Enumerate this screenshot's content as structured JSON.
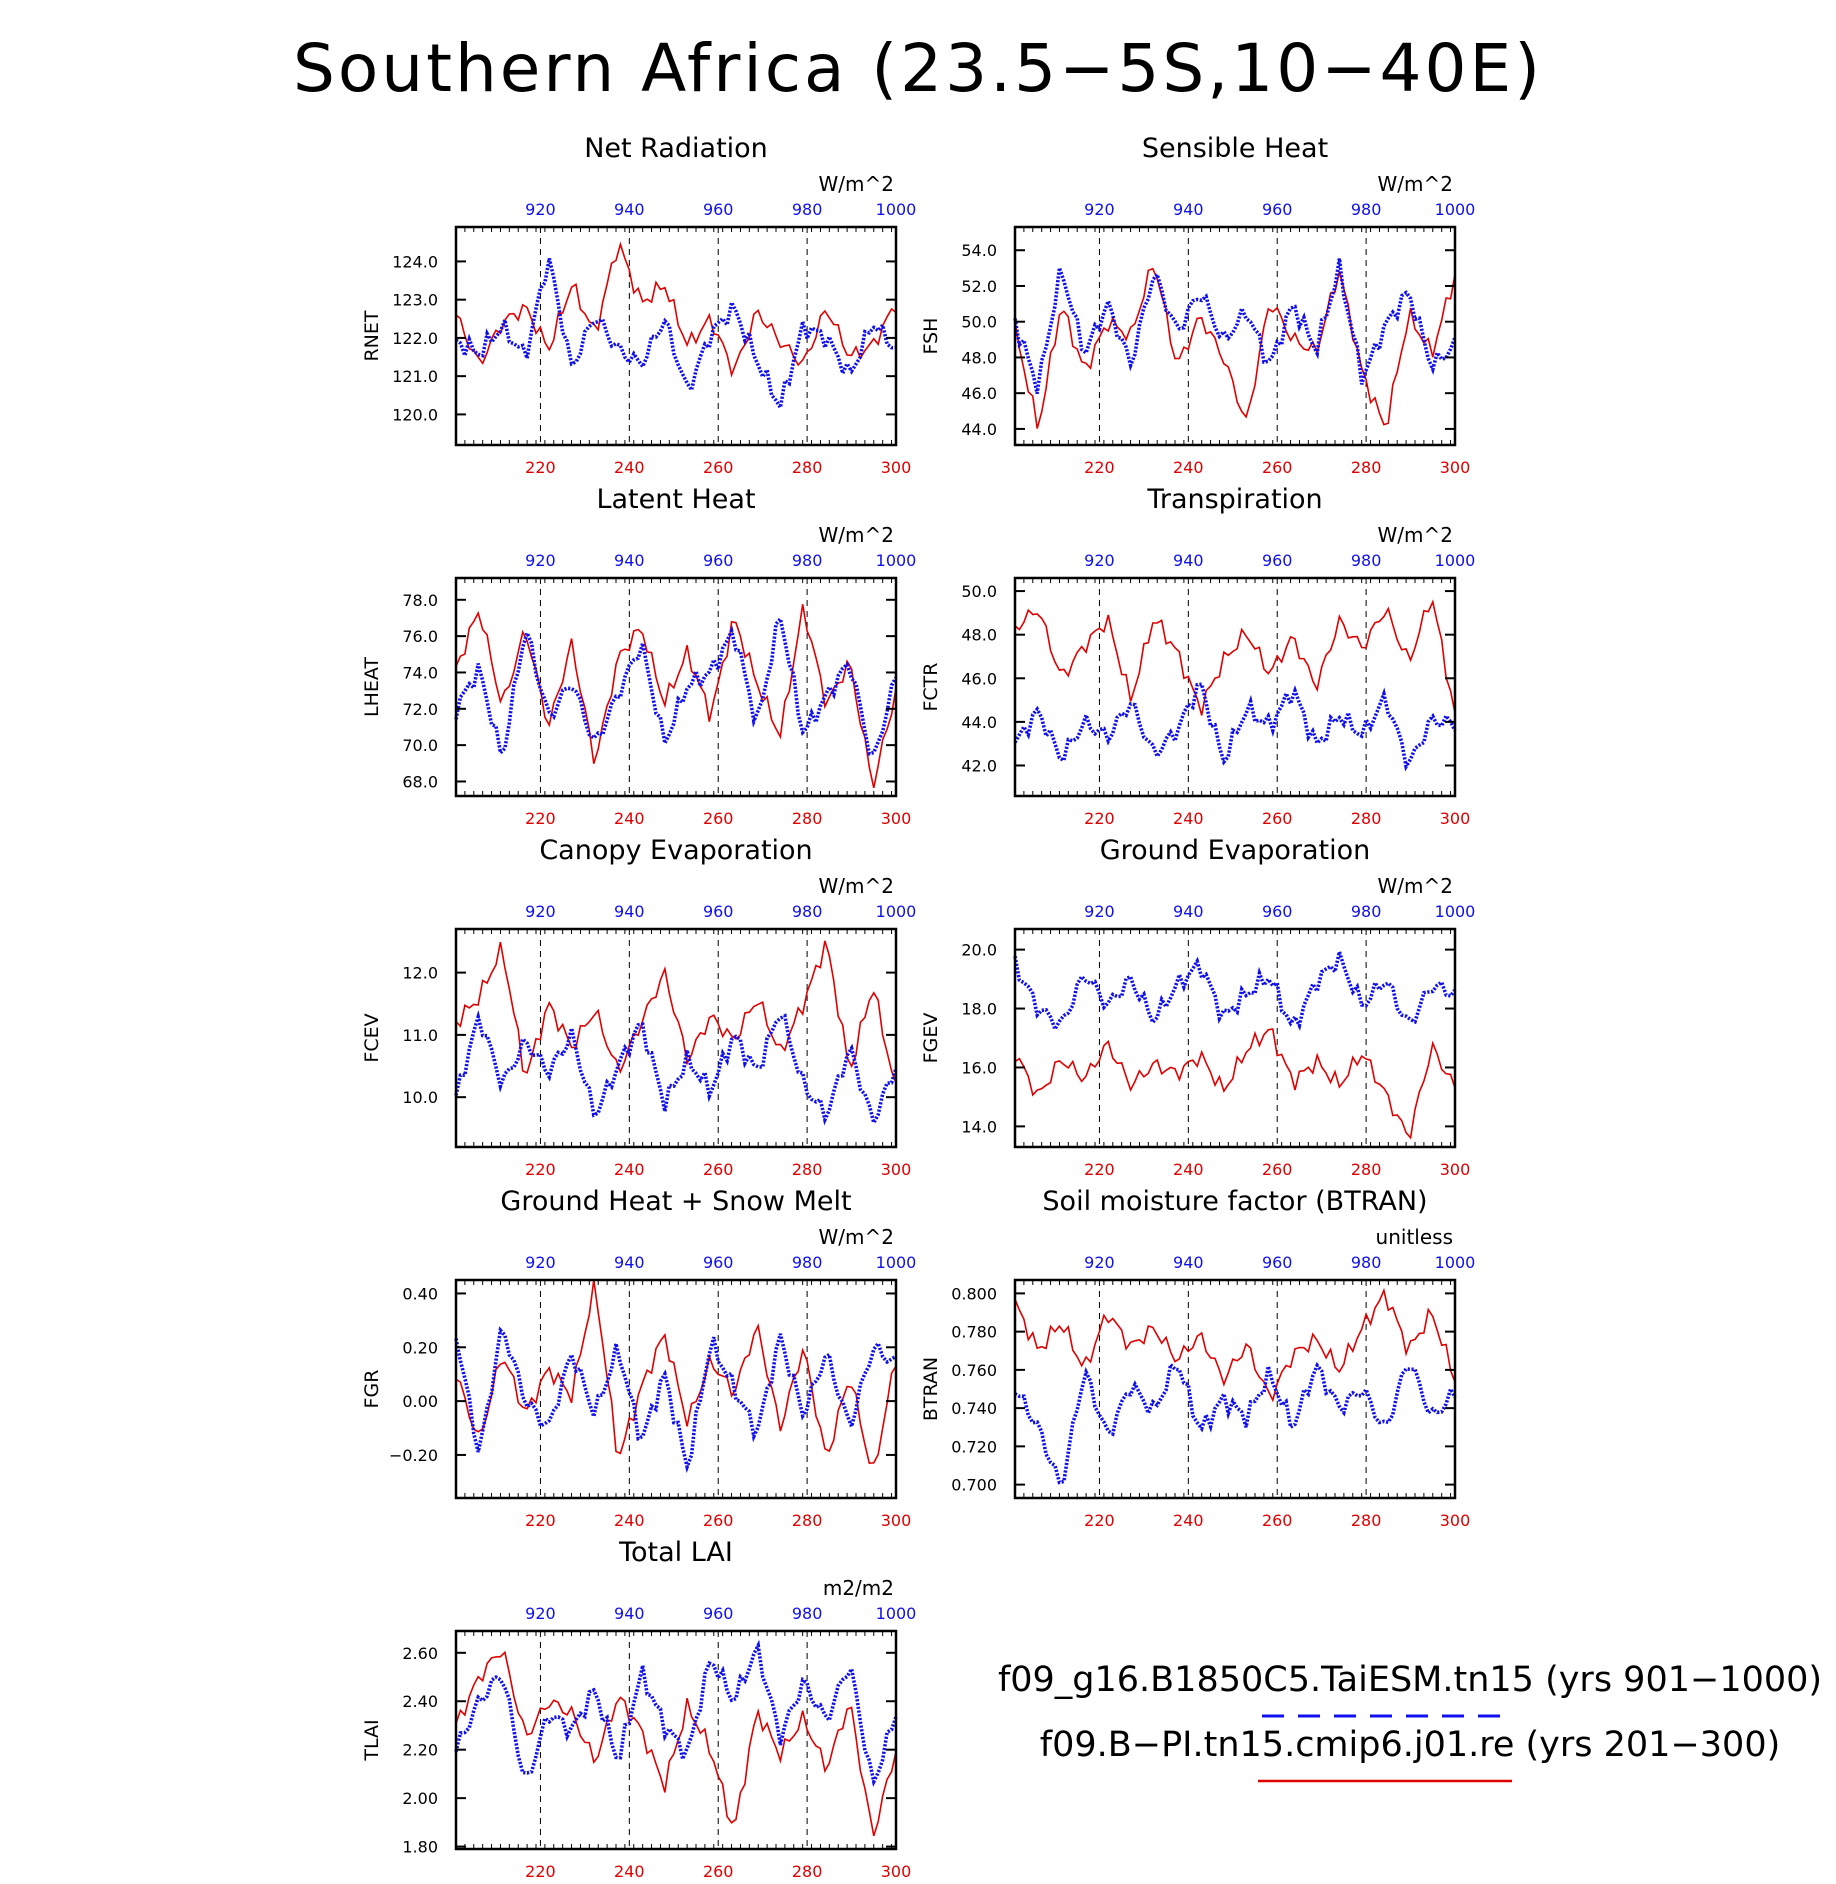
{
  "title": "Southern Africa (23.5−5S,10−40E)",
  "legend": [
    {
      "label": "f09_g16.B1850C5.TaiESM.tn15 (yrs 901−1000)",
      "color": "#1a1aff",
      "style": "dashed"
    },
    {
      "label": "f09.B−PI.tn15.cmip6.j01.re (yrs 201−300)",
      "color": "#e00000",
      "style": "solid"
    }
  ],
  "colors": {
    "red_series": "#e00000",
    "blue_series": "#1010ee"
  },
  "chart_data": [
    {
      "type": "line",
      "title": "Net Radiation",
      "ylabel": "RNET",
      "units": "W/m^2",
      "yticks": [
        "120.0",
        "121.0",
        "122.0",
        "123.0",
        "124.0"
      ],
      "ylim": [
        119.2,
        124.9
      ],
      "x_bottom_ticks": [
        "220",
        "240",
        "260",
        "280",
        "300"
      ],
      "x_bottom_range": [
        201,
        300
      ],
      "x_top_ticks": [
        "920",
        "940",
        "960",
        "980",
        "1000"
      ],
      "x_top_range": [
        901,
        1000
      ],
      "series": [
        {
          "color": "red",
          "years": "201-300",
          "values": [
            122.6,
            121.3,
            122.4,
            122.8,
            121.7,
            123.4,
            122.1,
            124.5,
            122.9,
            123.4,
            121.8,
            122.5,
            121.1,
            122.7,
            121.9,
            121.3,
            122.8,
            121.5,
            121.8,
            122.9
          ]
        },
        {
          "color": "blue",
          "years": "901-1000",
          "values": [
            121.9,
            121.6,
            122.3,
            121.5,
            124.1,
            121.2,
            122.6,
            121.7,
            121.3,
            122.5,
            120.6,
            122.1,
            122.8,
            121.4,
            120.2,
            122.3,
            122.0,
            121.0,
            122.4,
            121.7
          ]
        }
      ]
    },
    {
      "type": "line",
      "title": "Sensible Heat",
      "ylabel": "FSH",
      "units": "W/m^2",
      "yticks": [
        "44.0",
        "46.0",
        "48.0",
        "50.0",
        "52.0",
        "54.0"
      ],
      "ylim": [
        43.1,
        55.3
      ],
      "x_bottom_ticks": [
        "220",
        "240",
        "260",
        "280",
        "300"
      ],
      "x_bottom_range": [
        201,
        300
      ],
      "x_top_ticks": [
        "920",
        "940",
        "960",
        "980",
        "1000"
      ],
      "x_top_range": [
        901,
        1000
      ],
      "series": [
        {
          "color": "red",
          "years": "201-300",
          "values": [
            49.6,
            44.0,
            51.0,
            47.2,
            50.0,
            49.2,
            53.4,
            47.5,
            50.3,
            48.0,
            44.3,
            51.2,
            49.0,
            48.3,
            52.9,
            47.1,
            44.0,
            50.4,
            48.2,
            52.6
          ]
        },
        {
          "color": "blue",
          "years": "901-1000",
          "values": [
            50.0,
            46.3,
            53.0,
            48.2,
            51.0,
            47.6,
            52.8,
            49.4,
            51.7,
            48.9,
            50.6,
            47.5,
            51.0,
            48.4,
            53.0,
            46.8,
            49.8,
            51.7,
            47.5,
            48.7
          ]
        }
      ]
    },
    {
      "type": "line",
      "title": "Latent Heat",
      "ylabel": "LHEAT",
      "units": "W/m^2",
      "yticks": [
        "68.0",
        "70.0",
        "72.0",
        "74.0",
        "76.0",
        "78.0"
      ],
      "ylim": [
        67.2,
        79.2
      ],
      "x_bottom_ticks": [
        "220",
        "240",
        "260",
        "280",
        "300"
      ],
      "x_bottom_range": [
        201,
        300
      ],
      "x_top_ticks": [
        "920",
        "940",
        "960",
        "980",
        "1000"
      ],
      "x_top_range": [
        901,
        1000
      ],
      "series": [
        {
          "color": "red",
          "years": "201-300",
          "values": [
            74.2,
            77.5,
            72.1,
            76.4,
            71.0,
            75.6,
            69.0,
            74.8,
            76.5,
            72.3,
            75.1,
            71.6,
            77.0,
            73.4,
            70.5,
            77.6,
            72.2,
            74.6,
            67.7,
            73.0
          ]
        },
        {
          "color": "blue",
          "years": "901-1000",
          "values": [
            72.0,
            74.2,
            69.2,
            76.5,
            71.5,
            73.5,
            70.0,
            72.8,
            75.6,
            70.1,
            73.3,
            74.0,
            76.3,
            71.1,
            77.2,
            70.6,
            72.7,
            74.6,
            69.0,
            73.8
          ]
        }
      ]
    },
    {
      "type": "line",
      "title": "Transpiration",
      "ylabel": "FCTR",
      "units": "W/m^2",
      "yticks": [
        "42.0",
        "44.0",
        "46.0",
        "48.0",
        "50.0"
      ],
      "ylim": [
        40.6,
        50.6
      ],
      "x_bottom_ticks": [
        "220",
        "240",
        "260",
        "280",
        "300"
      ],
      "x_bottom_range": [
        201,
        300
      ],
      "x_top_ticks": [
        "920",
        "940",
        "960",
        "980",
        "1000"
      ],
      "x_top_range": [
        901,
        1000
      ],
      "series": [
        {
          "color": "red",
          "years": "201-300",
          "values": [
            48.3,
            49.2,
            46.0,
            47.5,
            48.7,
            45.0,
            48.8,
            47.2,
            44.6,
            46.8,
            48.1,
            46.2,
            47.9,
            45.6,
            48.6,
            47.4,
            49.2,
            46.7,
            49.8,
            44.3
          ]
        },
        {
          "color": "blue",
          "years": "901-1000",
          "values": [
            43.0,
            44.5,
            42.3,
            44.0,
            43.3,
            44.9,
            42.5,
            43.6,
            45.8,
            42.2,
            44.6,
            43.8,
            45.5,
            42.9,
            44.3,
            43.4,
            45.1,
            42.0,
            44.1,
            43.9
          ]
        }
      ]
    },
    {
      "type": "line",
      "title": "Canopy Evaporation",
      "ylabel": "FCEV",
      "units": "W/m^2",
      "yticks": [
        "10.0",
        "11.0",
        "12.0"
      ],
      "ylim": [
        9.2,
        12.7
      ],
      "x_bottom_ticks": [
        "220",
        "240",
        "260",
        "280",
        "300"
      ],
      "x_bottom_range": [
        201,
        300
      ],
      "x_top_ticks": [
        "920",
        "940",
        "960",
        "980",
        "1000"
      ],
      "x_top_range": [
        901,
        1000
      ],
      "series": [
        {
          "color": "red",
          "years": "201-300",
          "values": [
            11.2,
            11.6,
            12.4,
            10.3,
            11.5,
            10.8,
            11.4,
            10.4,
            11.2,
            12.0,
            10.6,
            11.3,
            10.9,
            11.6,
            10.7,
            11.5,
            12.5,
            10.4,
            11.8,
            10.1
          ]
        },
        {
          "color": "blue",
          "years": "901-1000",
          "values": [
            10.0,
            11.3,
            10.2,
            10.9,
            10.4,
            11.0,
            9.7,
            10.5,
            11.2,
            9.9,
            10.6,
            10.1,
            11.0,
            10.4,
            11.4,
            10.2,
            9.7,
            10.8,
            9.6,
            10.5
          ]
        }
      ]
    },
    {
      "type": "line",
      "title": "Ground Evaporation",
      "ylabel": "FGEV",
      "units": "W/m^2",
      "yticks": [
        "14.0",
        "16.0",
        "18.0",
        "20.0"
      ],
      "ylim": [
        13.3,
        20.7
      ],
      "x_bottom_ticks": [
        "220",
        "240",
        "260",
        "280",
        "300"
      ],
      "x_bottom_range": [
        201,
        300
      ],
      "x_top_ticks": [
        "920",
        "940",
        "960",
        "980",
        "1000"
      ],
      "x_top_range": [
        901,
        1000
      ],
      "series": [
        {
          "color": "red",
          "years": "201-300",
          "values": [
            16.5,
            15.0,
            16.3,
            15.6,
            16.8,
            15.4,
            16.1,
            15.8,
            16.4,
            15.2,
            16.6,
            17.3,
            15.5,
            16.2,
            15.4,
            16.5,
            15.1,
            13.6,
            16.7,
            15.3
          ]
        },
        {
          "color": "blue",
          "years": "901-1000",
          "values": [
            19.5,
            18.0,
            17.4,
            19.2,
            18.1,
            19.0,
            17.6,
            18.8,
            19.5,
            17.7,
            18.5,
            19.1,
            17.3,
            18.9,
            19.7,
            18.1,
            19.0,
            17.4,
            18.8,
            18.5
          ]
        }
      ]
    },
    {
      "type": "line",
      "title": "Ground Heat + Snow Melt",
      "ylabel": "FGR",
      "units": "W/m^2",
      "yticks": [
        "−0.20",
        "0.00",
        "0.20",
        "0.40"
      ],
      "ylim": [
        -0.36,
        0.45
      ],
      "x_bottom_ticks": [
        "220",
        "240",
        "260",
        "280",
        "300"
      ],
      "x_bottom_range": [
        201,
        300
      ],
      "x_top_ticks": [
        "920",
        "940",
        "960",
        "980",
        "1000"
      ],
      "x_top_range": [
        901,
        1000
      ],
      "series": [
        {
          "color": "red",
          "years": "201-300",
          "values": [
            0.1,
            -0.15,
            0.18,
            -0.05,
            0.12,
            0.02,
            0.44,
            -0.22,
            0.05,
            0.25,
            -0.08,
            0.15,
            0.03,
            0.28,
            -0.1,
            0.2,
            -0.22,
            0.1,
            -0.28,
            0.16
          ]
        },
        {
          "color": "blue",
          "years": "901-1000",
          "values": [
            0.25,
            -0.2,
            0.28,
            0.0,
            -0.1,
            0.18,
            -0.05,
            0.2,
            -0.15,
            0.1,
            -0.25,
            0.22,
            0.05,
            -0.12,
            0.24,
            -0.05,
            0.18,
            -0.1,
            0.2,
            0.14
          ]
        }
      ]
    },
    {
      "type": "line",
      "title": "Soil moisture factor (BTRAN)",
      "ylabel": "BTRAN",
      "units": "unitless",
      "yticks": [
        "0.700",
        "0.720",
        "0.740",
        "0.760",
        "0.780",
        "0.800"
      ],
      "ylim": [
        0.693,
        0.807
      ],
      "x_bottom_ticks": [
        "220",
        "240",
        "260",
        "280",
        "300"
      ],
      "x_bottom_range": [
        201,
        300
      ],
      "x_top_ticks": [
        "920",
        "940",
        "960",
        "980",
        "1000"
      ],
      "x_top_range": [
        901,
        1000
      ],
      "series": [
        {
          "color": "red",
          "years": "201-300",
          "values": [
            0.795,
            0.77,
            0.785,
            0.76,
            0.79,
            0.772,
            0.782,
            0.765,
            0.778,
            0.755,
            0.773,
            0.745,
            0.768,
            0.776,
            0.76,
            0.782,
            0.8,
            0.77,
            0.79,
            0.755
          ]
        },
        {
          "color": "blue",
          "years": "901-1000",
          "values": [
            0.75,
            0.73,
            0.698,
            0.76,
            0.725,
            0.752,
            0.738,
            0.765,
            0.728,
            0.745,
            0.735,
            0.758,
            0.73,
            0.762,
            0.74,
            0.75,
            0.728,
            0.766,
            0.735,
            0.748
          ]
        }
      ]
    },
    {
      "type": "line",
      "title": "Total LAI",
      "ylabel": "TLAI",
      "units": "m2/m2",
      "yticks": [
        "1.80",
        "2.00",
        "2.20",
        "2.40",
        "2.60"
      ],
      "ylim": [
        1.79,
        2.69
      ],
      "x_bottom_ticks": [
        "220",
        "240",
        "260",
        "280",
        "300"
      ],
      "x_bottom_range": [
        201,
        300
      ],
      "x_top_ticks": [
        "920",
        "940",
        "960",
        "980",
        "1000"
      ],
      "x_top_range": [
        901,
        1000
      ],
      "series": [
        {
          "color": "red",
          "years": "201-300",
          "values": [
            2.3,
            2.5,
            2.62,
            2.25,
            2.4,
            2.35,
            2.15,
            2.42,
            2.28,
            2.05,
            2.38,
            2.2,
            1.86,
            2.36,
            2.18,
            2.33,
            2.12,
            2.4,
            1.84,
            2.2
          ]
        },
        {
          "color": "blue",
          "years": "901-1000",
          "values": [
            2.2,
            2.4,
            2.52,
            2.05,
            2.35,
            2.28,
            2.45,
            2.15,
            2.52,
            2.3,
            2.18,
            2.58,
            2.4,
            2.62,
            2.25,
            2.48,
            2.32,
            2.56,
            2.05,
            2.35
          ]
        }
      ]
    }
  ]
}
